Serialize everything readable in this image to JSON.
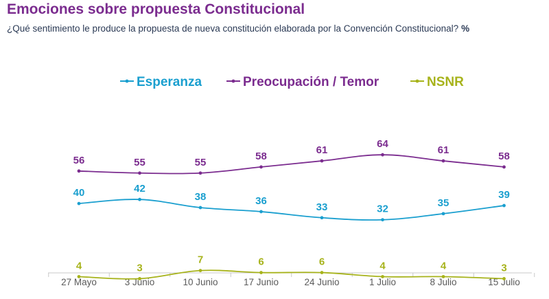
{
  "header": {
    "title": "Emociones sobre propuesta Constitucional",
    "subtitle": "¿Qué sentimiento le produce la propuesta de nueva constitución elaborada por la Convención Constitucional?",
    "unit": "%"
  },
  "colors": {
    "title": "#7b2c8f",
    "esperanza": "#1a9fcf",
    "temor": "#7b2c8f",
    "nsnr": "#a7b31b",
    "axis": "#c8c8c8"
  },
  "chart_data": {
    "type": "line",
    "categories": [
      "27 Mayo",
      "3 Junio",
      "10 Junio",
      "17 Junio",
      "24 Junio",
      "1 Julio",
      "8 Julio",
      "15 Julio"
    ],
    "series": [
      {
        "name": "Esperanza",
        "color": "#1a9fcf",
        "values": [
          40,
          42,
          38,
          36,
          33,
          32,
          35,
          39
        ]
      },
      {
        "name": "Preocupación / Temor",
        "color": "#7b2c8f",
        "values": [
          56,
          55,
          55,
          58,
          61,
          64,
          61,
          58
        ]
      },
      {
        "name": "NSNR",
        "color": "#a7b31b",
        "values": [
          4,
          3,
          7,
          6,
          6,
          4,
          4,
          3
        ]
      }
    ],
    "legend_position": "top",
    "grid": false,
    "smooth": true
  }
}
